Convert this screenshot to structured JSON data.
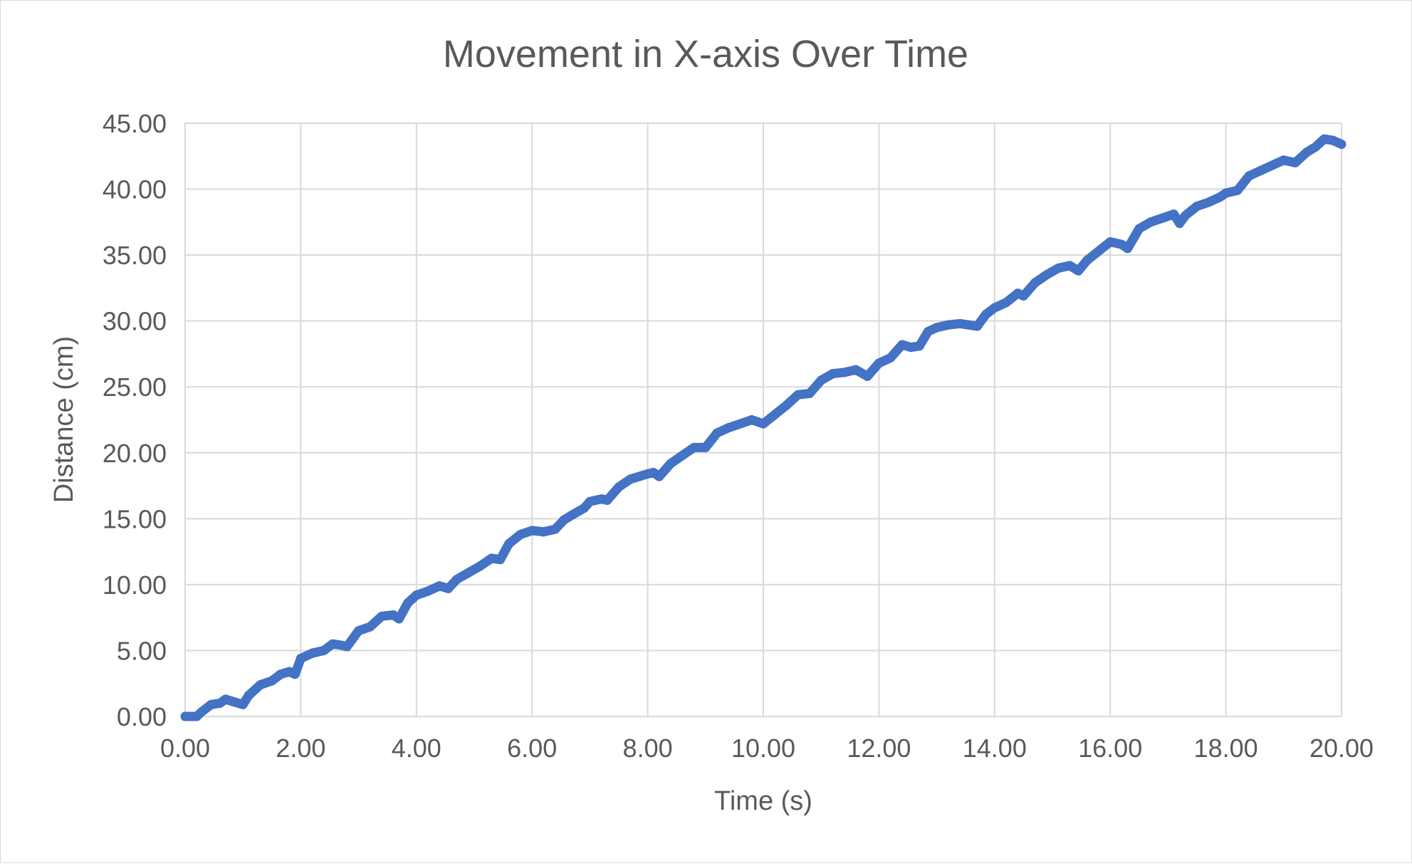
{
  "chart_data": {
    "type": "line",
    "title": "Movement in X-axis Over Time",
    "xlabel": "Time (s)",
    "ylabel": "Distance (cm)",
    "xlim": [
      0,
      20
    ],
    "ylim": [
      0,
      45
    ],
    "x_ticks": [
      "0.00",
      "2.00",
      "4.00",
      "6.00",
      "8.00",
      "10.00",
      "12.00",
      "14.00",
      "16.00",
      "18.00",
      "20.00"
    ],
    "y_ticks": [
      "0.00",
      "5.00",
      "10.00",
      "15.00",
      "20.00",
      "25.00",
      "30.00",
      "35.00",
      "40.00",
      "45.00"
    ],
    "grid": true,
    "legend": "none",
    "colors": {
      "series": "#4472c4",
      "grid": "#d9d9d9",
      "text": "#595959"
    },
    "series": [
      {
        "x": [
          0.0,
          0.2,
          0.3,
          0.45,
          0.6,
          0.7,
          0.85,
          1.0,
          1.1,
          1.3,
          1.5,
          1.65,
          1.8,
          1.9,
          2.0,
          2.2,
          2.4,
          2.55,
          2.7,
          2.8,
          3.0,
          3.2,
          3.4,
          3.6,
          3.7,
          3.85,
          4.0,
          4.2,
          4.4,
          4.55,
          4.7,
          4.9,
          5.1,
          5.3,
          5.45,
          5.6,
          5.8,
          6.0,
          6.2,
          6.4,
          6.55,
          6.7,
          6.9,
          7.0,
          7.2,
          7.3,
          7.5,
          7.7,
          8.0,
          8.1,
          8.2,
          8.4,
          8.6,
          8.8,
          9.0,
          9.2,
          9.4,
          9.6,
          9.8,
          10.0,
          10.2,
          10.4,
          10.6,
          10.8,
          11.0,
          11.2,
          11.4,
          11.6,
          11.8,
          12.0,
          12.2,
          12.4,
          12.55,
          12.7,
          12.85,
          13.0,
          13.2,
          13.4,
          13.55,
          13.7,
          13.85,
          14.0,
          14.2,
          14.4,
          14.5,
          14.7,
          14.9,
          15.1,
          15.3,
          15.45,
          15.6,
          15.8,
          16.0,
          16.2,
          16.3,
          16.5,
          16.7,
          16.9,
          17.1,
          17.2,
          17.3,
          17.5,
          17.7,
          17.9,
          18.0,
          18.2,
          18.4,
          18.6,
          18.8,
          19.0,
          19.2,
          19.4,
          19.55,
          19.7,
          19.85,
          20.0
        ],
        "values": [
          0.0,
          0.0,
          0.4,
          0.9,
          1.0,
          1.3,
          1.1,
          0.9,
          1.6,
          2.4,
          2.7,
          3.2,
          3.4,
          3.2,
          4.4,
          4.8,
          5.0,
          5.5,
          5.4,
          5.3,
          6.5,
          6.8,
          7.6,
          7.7,
          7.4,
          8.6,
          9.2,
          9.5,
          9.9,
          9.7,
          10.4,
          10.9,
          11.4,
          12.0,
          11.9,
          13.1,
          13.8,
          14.1,
          14.0,
          14.2,
          14.9,
          15.3,
          15.8,
          16.3,
          16.5,
          16.4,
          17.4,
          18.0,
          18.4,
          18.5,
          18.2,
          19.2,
          19.8,
          20.4,
          20.4,
          21.5,
          21.9,
          22.2,
          22.5,
          22.2,
          22.9,
          23.6,
          24.4,
          24.5,
          25.5,
          26.0,
          26.1,
          26.3,
          25.8,
          26.8,
          27.2,
          28.2,
          28.0,
          28.1,
          29.2,
          29.5,
          29.7,
          29.8,
          29.7,
          29.6,
          30.5,
          31.0,
          31.4,
          32.1,
          31.9,
          32.9,
          33.5,
          34.0,
          34.2,
          33.8,
          34.6,
          35.3,
          36.0,
          35.8,
          35.5,
          37.0,
          37.5,
          37.8,
          38.1,
          37.4,
          38.0,
          38.7,
          39.0,
          39.4,
          39.7,
          39.9,
          41.0,
          41.4,
          41.8,
          42.2,
          42.0,
          42.8,
          43.2,
          43.8,
          43.7,
          43.4
        ]
      }
    ]
  }
}
